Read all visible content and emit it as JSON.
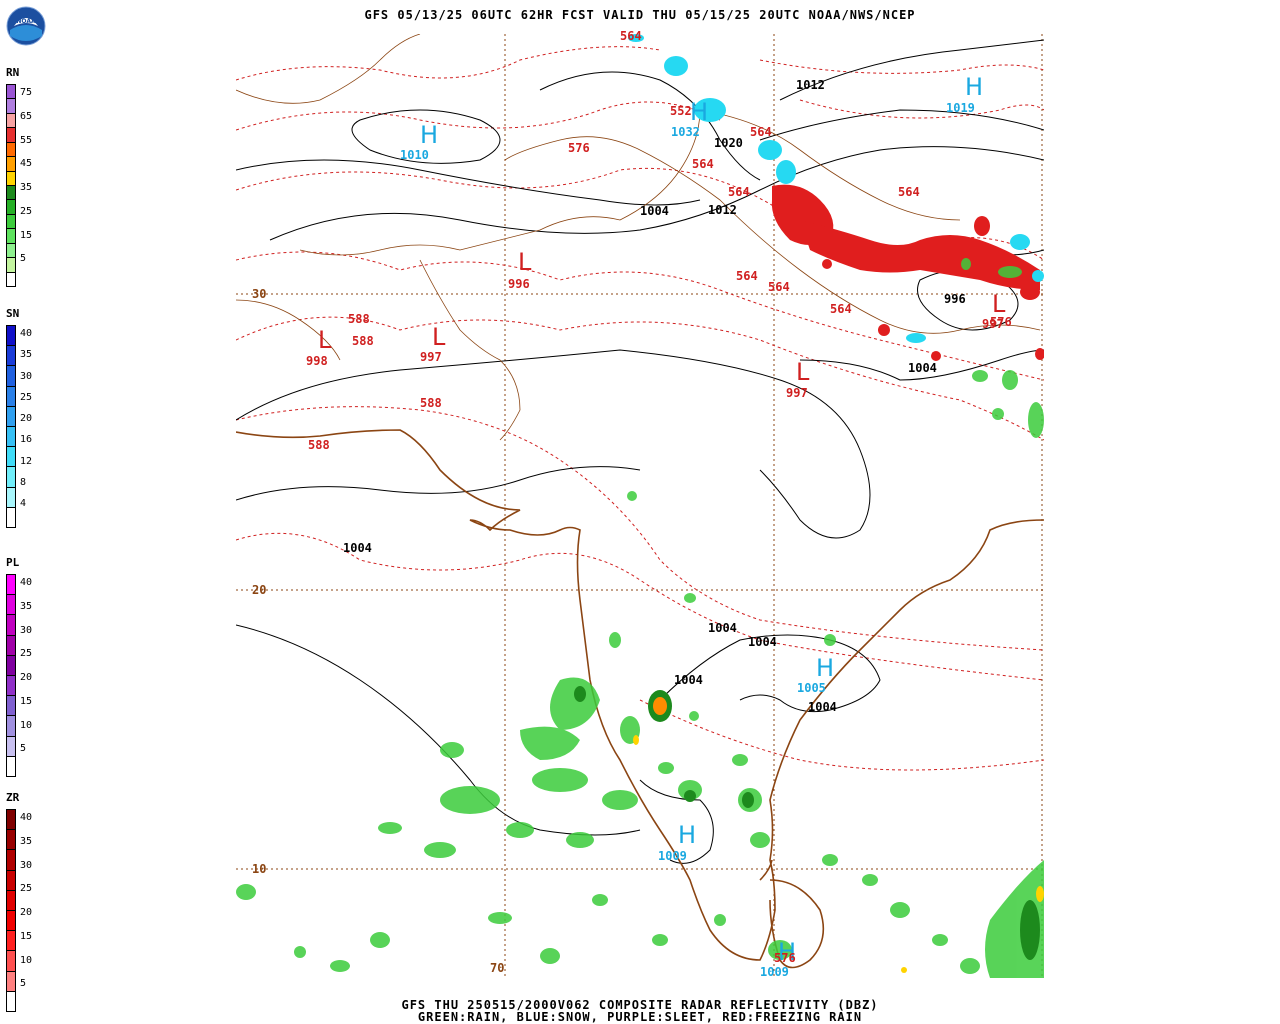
{
  "header": {
    "title": "GFS 05/13/25 06UTC 62HR FCST VALID THU 05/15/25 20UTC NOAA/NWS/NCEP"
  },
  "footer": {
    "line1": "GFS THU 250515/2000V062 COMPOSITE RADAR REFLECTIVITY (DBZ)",
    "line2": "GREEN:RAIN, BLUE:SNOW, PURPLE:SLEET, RED:FREEZING RAIN"
  },
  "logo": {
    "icon": "noaa-logo-icon",
    "text": "NOAA"
  },
  "legends": [
    {
      "id": "rn",
      "title": "RN",
      "ticks": [
        "75",
        "65",
        "55",
        "45",
        "35",
        "25",
        "15",
        "5"
      ],
      "colors": [
        "#9a55d4",
        "#b07fe0",
        "#f7a3a3",
        "#e63030",
        "#ff6a00",
        "#ffa000",
        "#ffd300",
        "#1d8a1d",
        "#26b026",
        "#3ccc3c",
        "#5ee25e",
        "#8ef08e",
        "#c4f5a0",
        "#ffffff"
      ]
    },
    {
      "id": "sn",
      "title": "SN",
      "ticks": [
        "40",
        "35",
        "30",
        "25",
        "20",
        "16",
        "12",
        "8",
        "4"
      ],
      "colors": [
        "#1010c8",
        "#1a3cd8",
        "#2060e0",
        "#2a80e8",
        "#30a0f0",
        "#36c0f5",
        "#40dcf8",
        "#70eefa",
        "#a8f6fc",
        "#ffffff"
      ]
    },
    {
      "id": "pl",
      "title": "PL",
      "ticks": [
        "40",
        "35",
        "30",
        "25",
        "20",
        "15",
        "10",
        "5"
      ],
      "colors": [
        "#ff00ff",
        "#e000e0",
        "#c000c0",
        "#a000a8",
        "#8000a0",
        "#9030c8",
        "#8060d0",
        "#a090e0",
        "#c8c0f0",
        "#ffffff"
      ]
    },
    {
      "id": "zr",
      "title": "ZR",
      "ticks": [
        "40",
        "35",
        "30",
        "25",
        "20",
        "15",
        "10",
        "5"
      ],
      "colors": [
        "#800000",
        "#980000",
        "#b00000",
        "#c80000",
        "#e00000",
        "#f00000",
        "#ff2020",
        "#ff5050",
        "#ff8080",
        "#ffffff"
      ]
    }
  ],
  "map": {
    "lat_labels": [
      "30",
      "20",
      "10"
    ],
    "lon_labels": [
      "70"
    ],
    "centers": [
      {
        "type": "H",
        "value": "1010"
      },
      {
        "type": "H",
        "value": "1032"
      },
      {
        "type": "H",
        "value": "1019"
      },
      {
        "type": "L",
        "value": "996"
      },
      {
        "type": "L",
        "value": "998"
      },
      {
        "type": "L",
        "value": "997"
      },
      {
        "type": "L",
        "value": "997"
      },
      {
        "type": "L",
        "value": "997"
      },
      {
        "type": "H",
        "value": "1005"
      },
      {
        "type": "H",
        "value": "1009"
      },
      {
        "type": "H",
        "value": "1009"
      }
    ],
    "isobar_labels": [
      "1012",
      "1020",
      "1004",
      "1012",
      "996",
      "1004",
      "1004",
      "1004",
      "1004",
      "1004",
      "1004"
    ],
    "thickness_labels": [
      "564",
      "576",
      "552",
      "564",
      "564",
      "564",
      "564",
      "564",
      "564",
      "588",
      "588",
      "588",
      "588",
      "576",
      "576",
      "564"
    ]
  }
}
